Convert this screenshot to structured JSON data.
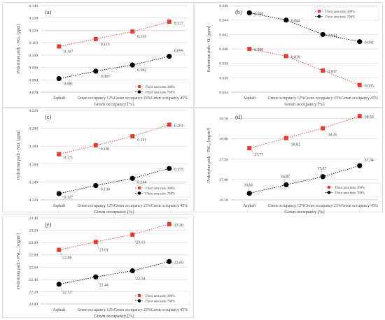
{
  "figure": {
    "chart_data": [
      {
        "panel_label": "(a)",
        "type": "line",
        "categories": [
          "Asphalt",
          "Green occupancy 12%",
          "Green occupancy 23%",
          "Green occupancy 45%"
        ],
        "xlabel": "Green occupancy [%]",
        "ylabel": "Pedestrian path - NO₂ [ppm]",
        "ylim": [
          0.07,
          0.14
        ],
        "yticks": [
          "0.070",
          "0.080",
          "0.090",
          "0.100",
          "0.110",
          "0.120",
          "0.130",
          "0.140"
        ],
        "legend_position": "bottom-right",
        "series": [
          {
            "name": "Floor area ratio 300%",
            "values": [
              0.107,
              0.113,
              0.119,
              0.127
            ],
            "labels": [
              "0.107",
              "0.113",
              "0.119",
              "0.127"
            ],
            "color": "#e03c31",
            "marker": "square"
          },
          {
            "name": "Floor area ratio 700%",
            "values": [
              0.081,
              0.087,
              0.092,
              0.099
            ],
            "labels": [
              "0.081",
              "0.087",
              "0.092",
              "0.099"
            ],
            "color": "#000000",
            "marker": "circle"
          }
        ]
      },
      {
        "panel_label": "(b)",
        "type": "line",
        "categories": [
          "Asphalt",
          "Green occupancy 12%",
          "Green occupancy 23%",
          "Green occupancy 45%"
        ],
        "xlabel": "Green occupancy [%]",
        "ylabel": "Pedestrian path - O₃ [ppm]",
        "ylim": [
          0.034,
          0.046
        ],
        "yticks": [
          "0.034",
          "0.036",
          "0.038",
          "0.040",
          "0.042",
          "0.044",
          "0.046"
        ],
        "legend_position": "top-right",
        "series": [
          {
            "name": "Floor area ratio 300%",
            "values": [
              0.04,
              0.039,
              0.037,
              0.035
            ],
            "labels": [
              "0.040",
              "0.039",
              "0.037",
              "0.035"
            ],
            "color": "#e03c31",
            "marker": "square"
          },
          {
            "name": "Floor area ratio 700%",
            "values": [
              0.045,
              0.044,
              0.042,
              0.041
            ],
            "labels": [
              "0.045",
              "0.044",
              "0.042",
              "0.041"
            ],
            "color": "#000000",
            "marker": "circle"
          }
        ]
      },
      {
        "panel_label": "(c)",
        "type": "line",
        "categories": [
          "Asphalt",
          "Green occupancy 12%",
          "Green occupancy 23%",
          "Green occupancy 45%"
        ],
        "xlabel": "Green occupancy [%]",
        "ylabel": "Pedestrian path - NOₓ [ppm]",
        "ylim": [
          0.12,
          0.22
        ],
        "yticks": [
          "0.120",
          "0.140",
          "0.160",
          "0.180",
          "0.200",
          "0.220"
        ],
        "legend_position": "bottom-right",
        "series": [
          {
            "name": "Floor area ratio 300%",
            "values": [
              0.171,
              0.181,
              0.191,
              0.204
            ],
            "labels": [
              "0.171",
              "0.181",
              "0.191",
              "0.204"
            ],
            "color": "#e03c31",
            "marker": "square"
          },
          {
            "name": "Floor area ratio 700%",
            "values": [
              0.127,
              0.136,
              0.144,
              0.155
            ],
            "labels": [
              "0.127",
              "0.136",
              "0.144",
              "0.155"
            ],
            "color": "#000000",
            "marker": "circle"
          }
        ]
      },
      {
        "panel_label": "(d)",
        "type": "line",
        "categories": [
          "Asphalt",
          "Green occupancy 12%",
          "Green occupancy 23%",
          "Green occupancy 45%"
        ],
        "xlabel": "Green occupancy [%]",
        "ylabel": "Pedestrian path - PM₁₀ [mg/m³]",
        "ylim": [
          36.5,
          38.7
        ],
        "yticks": [
          "36.50",
          "37.00",
          "37.50",
          "38.00",
          "38.50"
        ],
        "legend_position": "bottom-right",
        "series": [
          {
            "name": "Floor area ratio 300%",
            "values": [
              37.77,
              38.02,
              38.26,
              38.56
            ],
            "labels": [
              "37.77",
              "38.02",
              "38.26",
              "38.56"
            ],
            "color": "#e03c31",
            "marker": "square"
          },
          {
            "name": "Floor area ratio 700%",
            "values": [
              36.66,
              36.87,
              37.07,
              37.34
            ],
            "labels": [
              "36.66",
              "36.87",
              "37.07",
              "37.34"
            ],
            "color": "#000000",
            "marker": "circle"
          }
        ]
      },
      {
        "panel_label": "(e)",
        "type": "line",
        "categories": [
          "Asphalt",
          "Green occupancy 12%",
          "Green occupancy 23%",
          "Green occupancy 45%"
        ],
        "xlabel": "Green occupancy [%]",
        "ylabel": "Pedestrian path - PM₂.₅ [mg/m³]",
        "ylim": [
          22.0,
          23.4
        ],
        "yticks": [
          "22.00",
          "22.20",
          "22.40",
          "22.60",
          "22.80",
          "23.00",
          "23.20",
          "23.40"
        ],
        "legend_position": "bottom-right",
        "series": [
          {
            "name": "Floor area ratio 300%",
            "values": [
              22.88,
              23.01,
              23.13,
              23.3
            ],
            "labels": [
              "22.88",
              "23.01",
              "23.13",
              "23.30"
            ],
            "color": "#e03c31",
            "marker": "square"
          },
          {
            "name": "Floor area ratio 700%",
            "values": [
              22.32,
              22.44,
              22.54,
              22.69
            ],
            "labels": [
              "22.32",
              "22.44",
              "22.54",
              "22.69"
            ],
            "color": "#000000",
            "marker": "circle"
          }
        ]
      }
    ]
  }
}
